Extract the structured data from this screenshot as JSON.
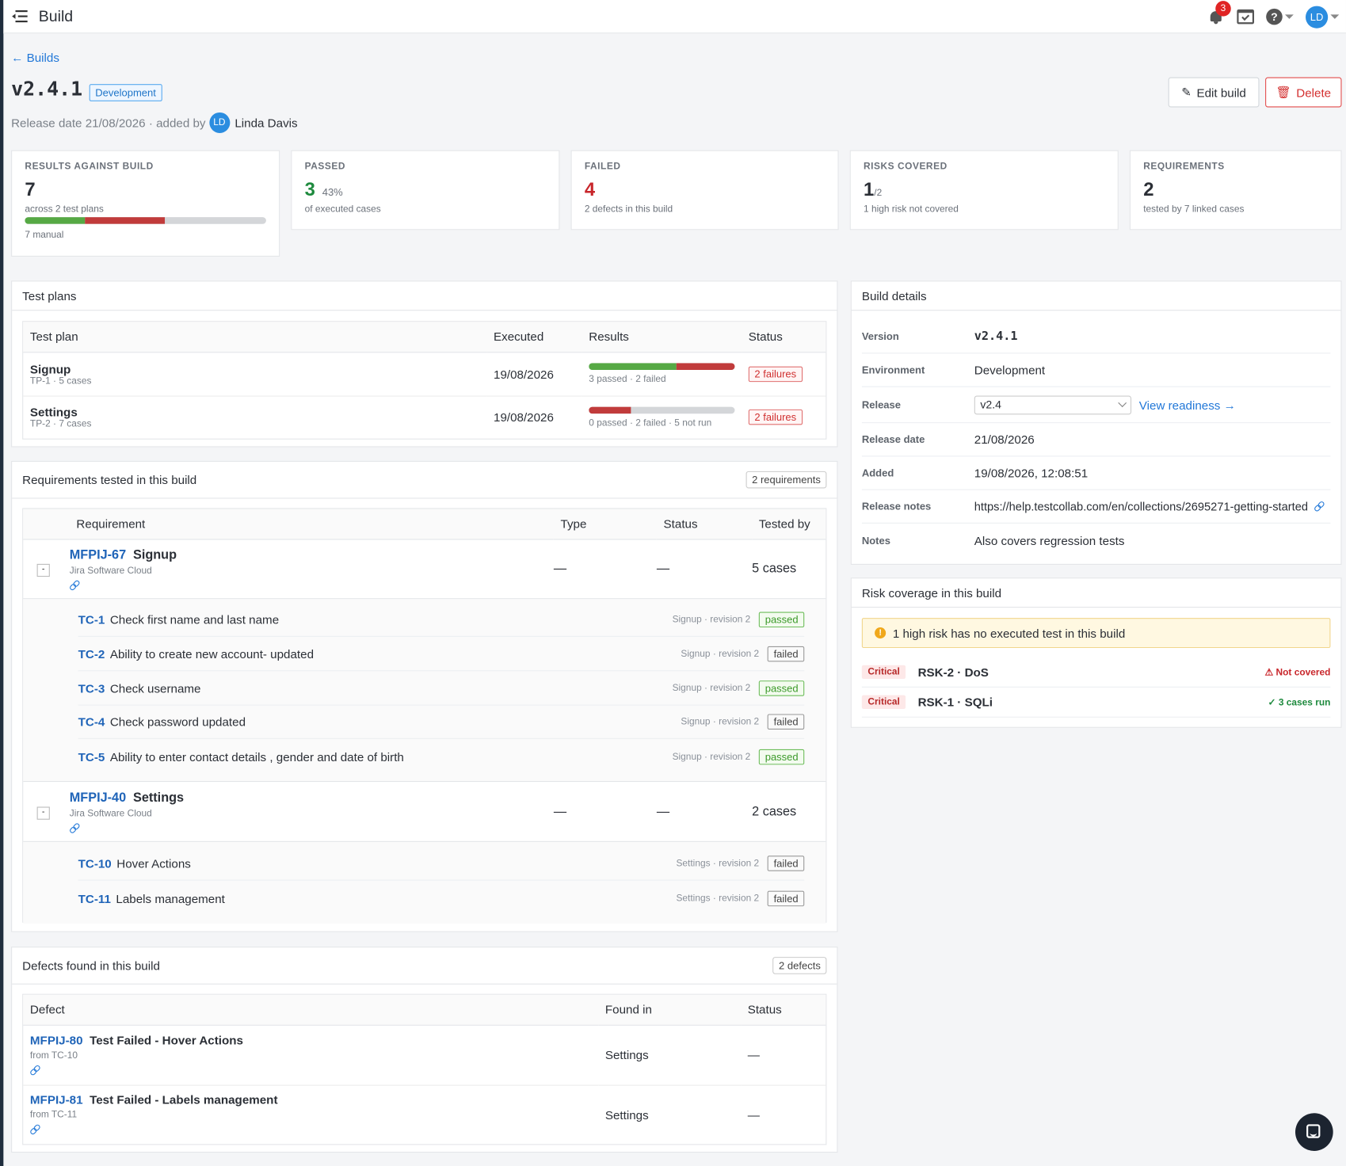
{
  "app": {
    "title": "Build",
    "notification_count": "3",
    "user_initials": "LD"
  },
  "header": {
    "back_label": "Builds",
    "build_name": "v2.4.1",
    "environment": "Development",
    "release_text": "Release date 21/08/2026 · added by",
    "added_by_initials": "LD",
    "added_by": "Linda Davis",
    "edit_label": "Edit build",
    "delete_label": "Delete"
  },
  "stats": {
    "results": {
      "label": "RESULTS AGAINST BUILD",
      "value": "7",
      "sub": "across 2 test plans",
      "foot": "7 manual",
      "passed_pct": 25,
      "failed_pct": 33
    },
    "passed": {
      "label": "PASSED",
      "value": "3",
      "pct": "43%",
      "sub": "of executed cases"
    },
    "failed": {
      "label": "FAILED",
      "value": "4",
      "sub": "2 defects in this build"
    },
    "risks": {
      "label": "RISKS COVERED",
      "value": "1",
      "frac": "/2",
      "sub": "1 high risk not covered"
    },
    "requirements": {
      "label": "REQUIREMENTS",
      "value": "2",
      "sub": "tested by 7 linked cases"
    }
  },
  "test_plans": {
    "title": "Test plans",
    "columns": [
      "Test plan",
      "Executed",
      "Results",
      "Status"
    ],
    "rows": [
      {
        "name": "Signup",
        "meta": "TP-1 · 5 cases",
        "executed": "19/08/2026",
        "results_text": "3 passed · 2 failed",
        "passed": 3,
        "failed": 2,
        "notrun": 0,
        "status": "2 failures"
      },
      {
        "name": "Settings",
        "meta": "TP-2 · 7 cases",
        "executed": "19/08/2026",
        "results_text": "0 passed · 2 failed · 5 not run",
        "passed": 0,
        "failed": 2,
        "notrun": 5,
        "status": "2 failures"
      }
    ]
  },
  "requirements": {
    "title": "Requirements tested in this build",
    "count": "2 requirements",
    "columns": [
      "Requirement",
      "Type",
      "Status",
      "Tested by"
    ],
    "items": [
      {
        "key": "MFPIJ-67",
        "name": "Signup",
        "source": "Jira Software Cloud",
        "type": "—",
        "status": "—",
        "tested_by": "5 cases",
        "cases": [
          {
            "id": "TC-1",
            "title": "Check first name and last name",
            "rev": "Signup · revision 2",
            "status": "passed"
          },
          {
            "id": "TC-2",
            "title": "Ability to create new account- updated",
            "rev": "Signup · revision 2",
            "status": "failed"
          },
          {
            "id": "TC-3",
            "title": "Check username",
            "rev": "Signup · revision 2",
            "status": "passed"
          },
          {
            "id": "TC-4",
            "title": "Check password updated",
            "rev": "Signup · revision 2",
            "status": "failed"
          },
          {
            "id": "TC-5",
            "title": "Ability to enter contact details , gender and date of birth",
            "rev": "Signup · revision 2",
            "status": "passed"
          }
        ]
      },
      {
        "key": "MFPIJ-40",
        "name": "Settings",
        "source": "Jira Software Cloud",
        "type": "—",
        "status": "—",
        "tested_by": "2 cases",
        "cases": [
          {
            "id": "TC-10",
            "title": "Hover Actions",
            "rev": "Settings · revision 2",
            "status": "failed"
          },
          {
            "id": "TC-11",
            "title": "Labels management",
            "rev": "Settings · revision 2",
            "status": "failed"
          }
        ]
      }
    ]
  },
  "defects": {
    "title": "Defects found in this build",
    "count": "2 defects",
    "columns": [
      "Defect",
      "Found in",
      "Status"
    ],
    "rows": [
      {
        "key": "MFPIJ-80",
        "title": "Test Failed - Hover Actions",
        "from": "from TC-10",
        "found_in": "Settings",
        "status": "—"
      },
      {
        "key": "MFPIJ-81",
        "title": "Test Failed - Labels management",
        "from": "from TC-11",
        "found_in": "Settings",
        "status": "—"
      }
    ]
  },
  "build_details": {
    "title": "Build details",
    "version_label": "Version",
    "version": "v2.4.1",
    "environment_label": "Environment",
    "environment": "Development",
    "release_label": "Release",
    "release": "v2.4",
    "view_readiness": "View readiness",
    "release_date_label": "Release date",
    "release_date": "21/08/2026",
    "added_label": "Added",
    "added": "19/08/2026, 12:08:51",
    "notes_url_label": "Release notes",
    "notes_url": "https://help.testcollab.com/en/collections/2695271-getting-started",
    "notes_label": "Notes",
    "notes": "Also covers regression tests"
  },
  "risk_coverage": {
    "title": "Risk coverage in this build",
    "warning": "1 high risk has no executed test in this build",
    "risks": [
      {
        "severity": "Critical",
        "name": "RSK-2 · DoS",
        "status": "Not covered",
        "status_color": "#c8262b"
      },
      {
        "severity": "Critical",
        "name": "RSK-1 · SQLi",
        "status": "3 cases run",
        "status_color": "#1e8a3e"
      }
    ]
  }
}
